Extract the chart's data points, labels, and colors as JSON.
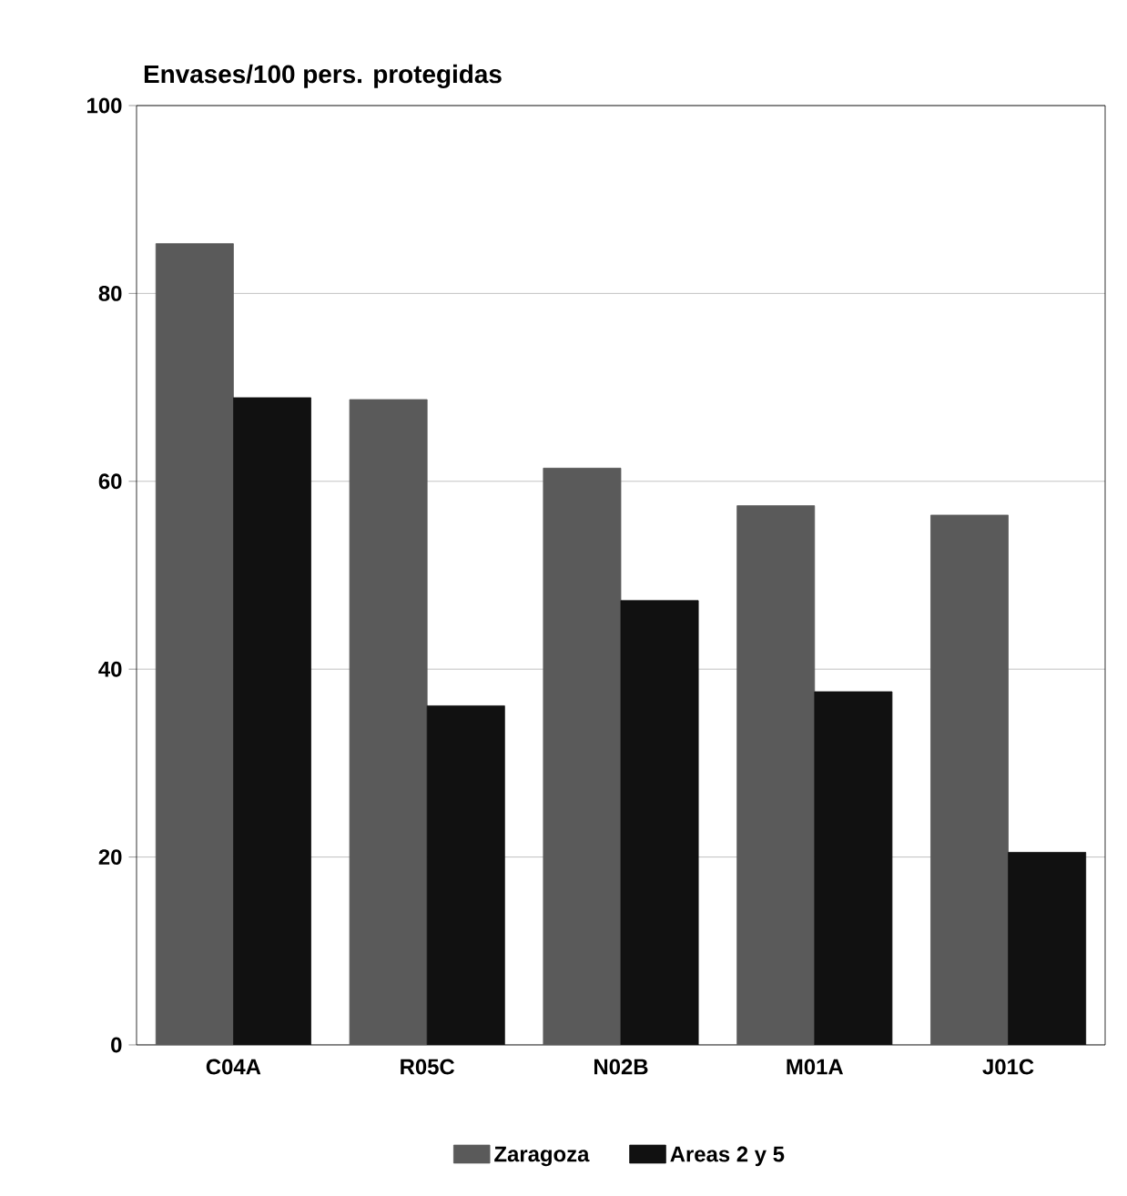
{
  "chart_data": {
    "type": "bar",
    "title": "Envases/100 pers. protegidas",
    "categories": [
      "C04A",
      "R05C",
      "N02B",
      "M01A",
      "J01C"
    ],
    "series": [
      {
        "name": "Zaragoza",
        "color": "#5a5a5a",
        "values": [
          85.3,
          68.7,
          61.4,
          57.4,
          56.4
        ]
      },
      {
        "name": "Areas 2 y 5",
        "color": "#111111",
        "values": [
          68.9,
          36.1,
          47.3,
          37.6,
          20.5
        ]
      }
    ],
    "ylim": [
      0,
      100
    ],
    "yticks": [
      0,
      20,
      40,
      60,
      80,
      100
    ],
    "grid": "y",
    "legend": "bottom"
  }
}
